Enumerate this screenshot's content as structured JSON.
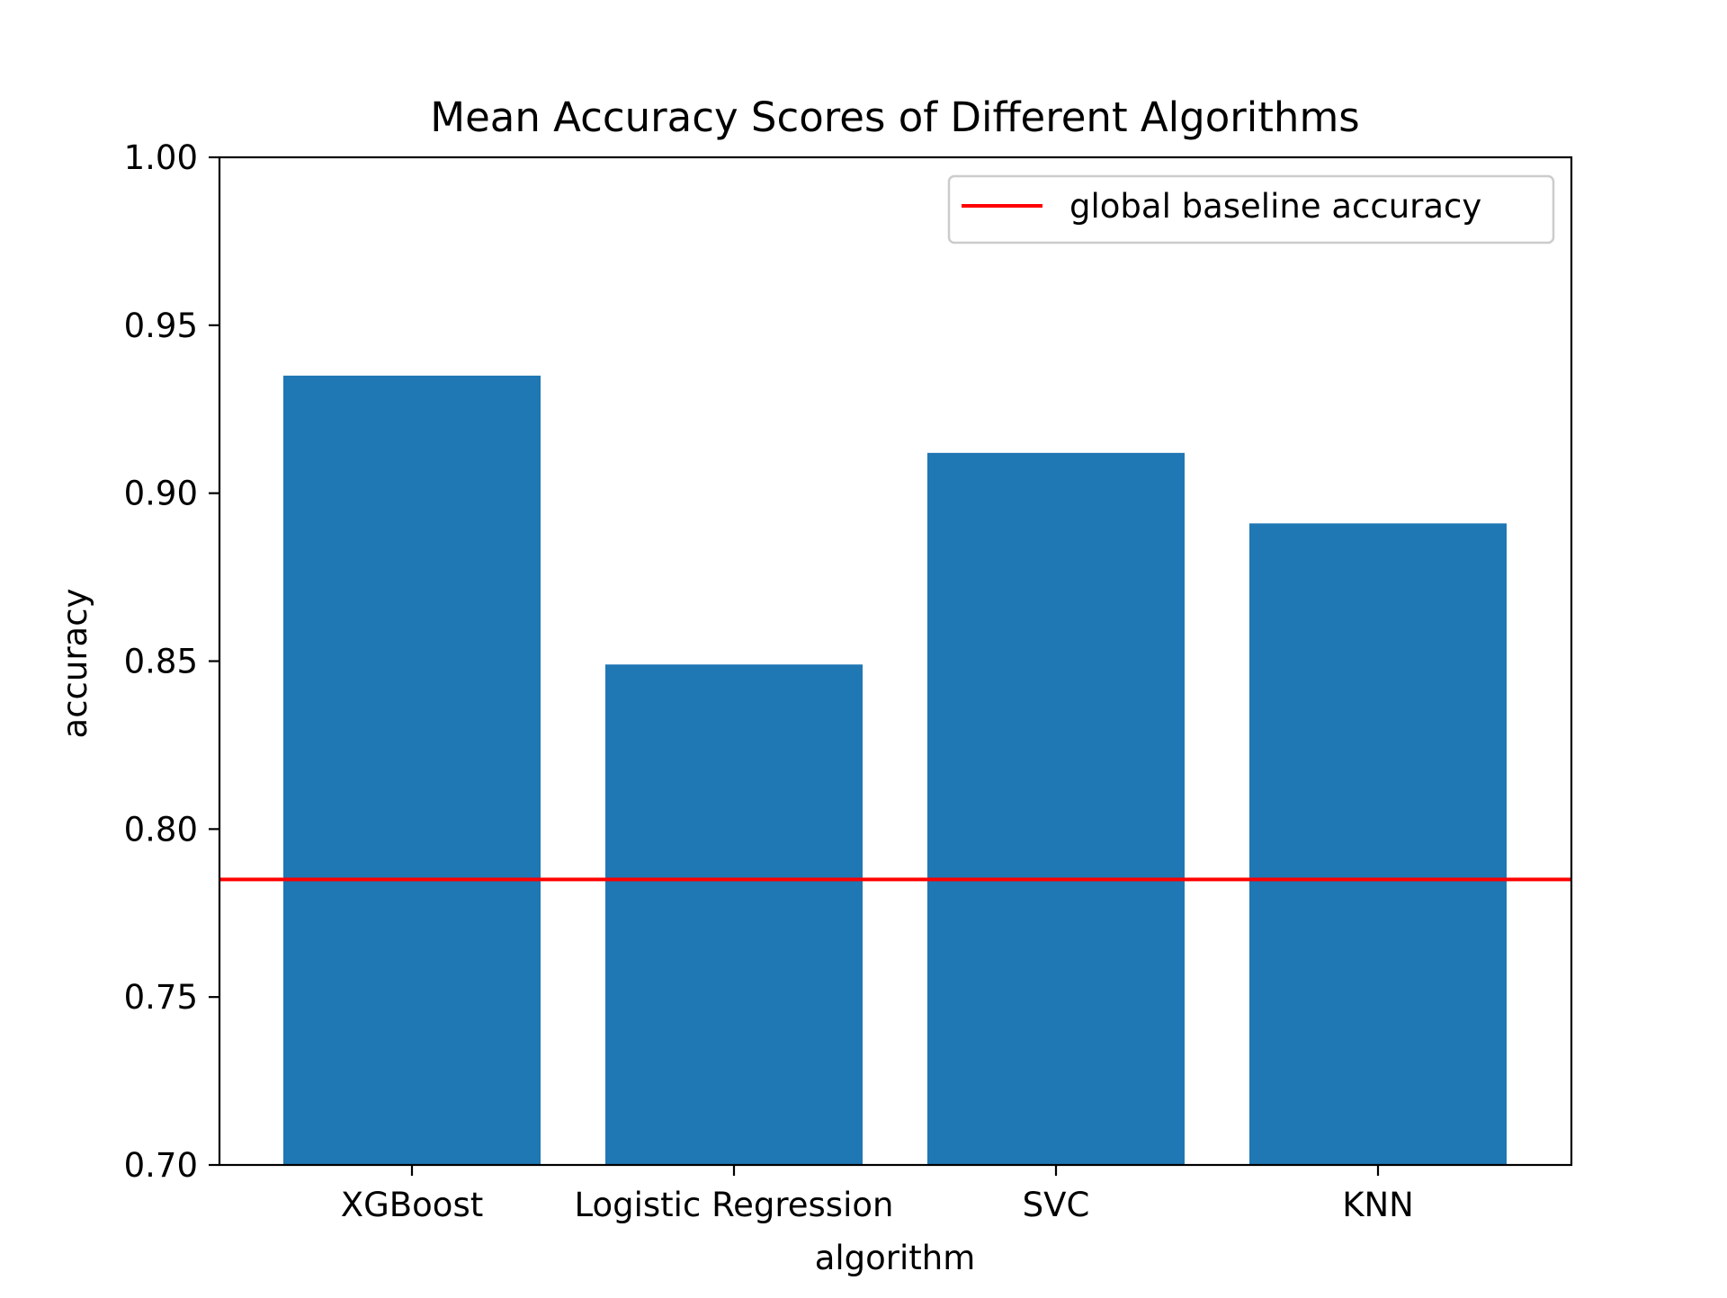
{
  "chart_data": {
    "type": "bar",
    "title": "Mean Accuracy Scores of Different Algorithms",
    "xlabel": "algorithm",
    "ylabel": "accuracy",
    "categories": [
      "XGBoost",
      "Logistic Regression",
      "SVC",
      "KNN"
    ],
    "values": [
      0.935,
      0.849,
      0.912,
      0.891
    ],
    "ylim": [
      0.7,
      1.0
    ],
    "yticks": [
      "0.70",
      "0.75",
      "0.80",
      "0.85",
      "0.90",
      "0.95",
      "1.00"
    ],
    "grid": false,
    "bar_color": "#1f77b4",
    "reference_line": {
      "label": "global baseline accuracy",
      "value": 0.785,
      "color": "#ff0000"
    },
    "legend": {
      "placement": "top-right",
      "entries": [
        "global baseline accuracy"
      ]
    }
  }
}
